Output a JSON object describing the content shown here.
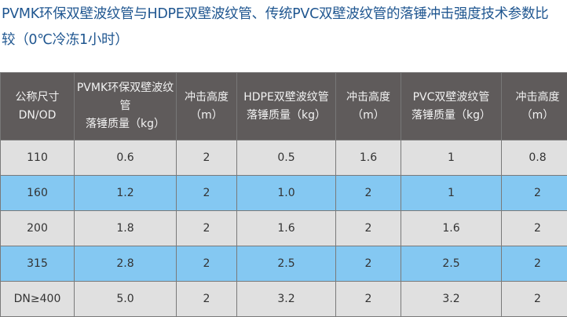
{
  "title": "PVMK环保双壁波纹管与HDPE双壁波纹管、传统PVC双壁波纹管的落锤冲击强度技术参数比较（0℃冷冻1小时）",
  "title_line1": "PVMK环保双壁波纹管与HDPE双壁波纹管、传统PVC双壁波纹管的落锤冲击强度技术参数比",
  "title_line2": "较（0℃冷冻1小时）",
  "colors": {
    "title": "#1f5690",
    "header_bg": "#5f5b5b",
    "row_gray": "#e0e0e0",
    "row_blue": "#84c8f2"
  },
  "table": {
    "headers": [
      [
        "公称尺寸",
        "DN/OD"
      ],
      [
        "PVMK环保双壁波纹管",
        "落锤质量（kg）"
      ],
      [
        "冲击高度",
        "（m）"
      ],
      [
        "HDPE双壁波纹管",
        "落锤质量（kg）"
      ],
      [
        "冲击高度",
        "（m）"
      ],
      [
        "PVC双壁波纹管",
        "落锤质量（kg）"
      ],
      [
        "冲击高度",
        "（m）"
      ]
    ],
    "rows": [
      [
        "110",
        "0.6",
        "2",
        "0.5",
        "1.6",
        "1",
        "0.8"
      ],
      [
        "160",
        "1.2",
        "2",
        "1.0",
        "2",
        "1",
        "2"
      ],
      [
        "200",
        "1.8",
        "2",
        "1.6",
        "2",
        "1.6",
        "2"
      ],
      [
        "315",
        "2.8",
        "2",
        "2.5",
        "2",
        "2.5",
        "2"
      ],
      [
        "DN≥400",
        "5.0",
        "2",
        "3.2",
        "2",
        "3.2",
        "2"
      ]
    ]
  }
}
